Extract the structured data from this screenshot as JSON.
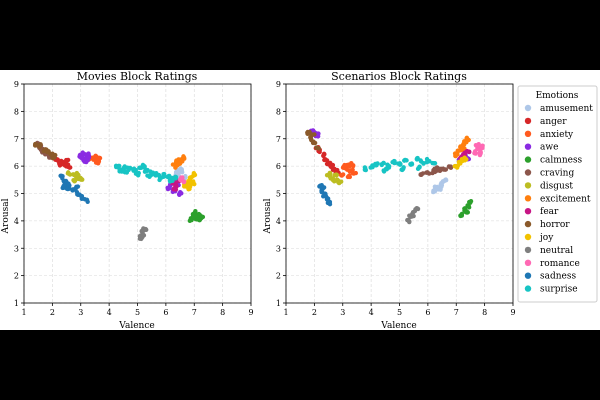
{
  "chart_data": [
    {
      "type": "scatter",
      "title": "Movies Block Ratings",
      "xlabel": "Valence",
      "ylabel": "Arousal",
      "xlim": [
        1,
        9
      ],
      "ylim": [
        1,
        9
      ],
      "xticks": [
        "1",
        "2",
        "3",
        "4",
        "5",
        "6",
        "7",
        "8",
        "9"
      ],
      "yticks": [
        "1",
        "2",
        "3",
        "4",
        "5",
        "6",
        "7",
        "8",
        "9"
      ],
      "grid": true,
      "series": [
        {
          "name": "amusement",
          "color": "#aec7e8",
          "points": [
            [
              6.4,
              5.7
            ],
            [
              6.5,
              5.6
            ],
            [
              6.6,
              5.8
            ],
            [
              6.3,
              5.5
            ],
            [
              6.5,
              5.9
            ],
            [
              6.7,
              5.6
            ],
            [
              6.6,
              5.5
            ],
            [
              6.4,
              5.8
            ]
          ]
        },
        {
          "name": "anger",
          "color": "#d62728",
          "points": [
            [
              2.1,
              6.25
            ],
            [
              2.2,
              6.2
            ],
            [
              2.3,
              6.15
            ],
            [
              2.4,
              6.1
            ],
            [
              2.5,
              6.05
            ],
            [
              2.6,
              6.0
            ],
            [
              2.5,
              6.2
            ],
            [
              2.3,
              6.05
            ]
          ]
        },
        {
          "name": "anxiety",
          "color": "#ff5a1f",
          "points": [
            [
              3.35,
              6.3
            ],
            [
              3.45,
              6.25
            ],
            [
              3.55,
              6.2
            ],
            [
              3.65,
              6.25
            ],
            [
              3.5,
              6.35
            ],
            [
              3.6,
              6.15
            ]
          ]
        },
        {
          "name": "awe",
          "color": "#8a2be2",
          "points": [
            [
              3.0,
              6.35
            ],
            [
              3.1,
              6.45
            ],
            [
              3.2,
              6.3
            ],
            [
              3.3,
              6.4
            ],
            [
              3.15,
              6.2
            ],
            [
              3.25,
              6.25
            ],
            [
              6.1,
              5.2
            ],
            [
              6.3,
              5.1
            ],
            [
              6.5,
              5.0
            ],
            [
              6.4,
              5.3
            ],
            [
              6.2,
              5.35
            ]
          ]
        },
        {
          "name": "calmness",
          "color": "#2ca02c",
          "points": [
            [
              6.9,
              4.05
            ],
            [
              7.0,
              4.2
            ],
            [
              7.1,
              4.1
            ],
            [
              7.2,
              4.25
            ],
            [
              7.25,
              4.15
            ],
            [
              7.05,
              4.3
            ],
            [
              7.15,
              4.0
            ],
            [
              6.95,
              4.2
            ]
          ]
        },
        {
          "name": "craving",
          "color": "#8c564b",
          "points": [
            [
              1.5,
              6.8
            ],
            [
              1.6,
              6.7
            ],
            [
              1.7,
              6.55
            ],
            [
              1.8,
              6.45
            ],
            [
              1.9,
              6.35
            ],
            [
              1.65,
              6.6
            ]
          ]
        },
        {
          "name": "disgust",
          "color": "#bcbd22",
          "points": [
            [
              2.6,
              5.75
            ],
            [
              2.75,
              5.7
            ],
            [
              2.85,
              5.6
            ],
            [
              2.95,
              5.55
            ],
            [
              3.05,
              5.5
            ],
            [
              2.8,
              5.5
            ],
            [
              2.9,
              5.7
            ]
          ]
        },
        {
          "name": "excitement",
          "color": "#ff7f0e",
          "points": [
            [
              6.3,
              6.0
            ],
            [
              6.4,
              6.15
            ],
            [
              6.5,
              6.25
            ],
            [
              6.6,
              6.3
            ],
            [
              6.45,
              6.05
            ],
            [
              6.55,
              6.2
            ]
          ]
        },
        {
          "name": "fear",
          "color": "#c71585",
          "points": [
            [
              6.25,
              5.4
            ],
            [
              6.35,
              5.3
            ],
            [
              6.45,
              5.45
            ],
            [
              6.3,
              5.2
            ],
            [
              6.4,
              5.5
            ]
          ]
        },
        {
          "name": "horror",
          "color": "#8b5a2b",
          "points": [
            [
              1.45,
              6.8
            ],
            [
              1.55,
              6.75
            ],
            [
              1.75,
              6.6
            ],
            [
              1.85,
              6.5
            ],
            [
              1.95,
              6.4
            ],
            [
              2.05,
              6.35
            ]
          ]
        },
        {
          "name": "joy",
          "color": "#f2c200",
          "points": [
            [
              6.7,
              5.3
            ],
            [
              6.8,
              5.45
            ],
            [
              6.9,
              5.55
            ],
            [
              7.0,
              5.7
            ],
            [
              6.85,
              5.2
            ],
            [
              6.95,
              5.4
            ]
          ]
        },
        {
          "name": "neutral",
          "color": "#7f7f7f",
          "points": [
            [
              5.1,
              3.4
            ],
            [
              5.15,
              3.5
            ],
            [
              5.2,
              3.6
            ],
            [
              5.25,
              3.7
            ],
            [
              5.2,
              3.45
            ]
          ]
        },
        {
          "name": "romance",
          "color": "#ff69b4",
          "points": [
            [
              6.5,
              5.55
            ],
            [
              6.6,
              5.45
            ],
            [
              6.55,
              5.6
            ]
          ]
        },
        {
          "name": "sadness",
          "color": "#1f77b4",
          "points": [
            [
              2.3,
              5.6
            ],
            [
              2.45,
              5.4
            ],
            [
              2.6,
              5.3
            ],
            [
              2.75,
              5.15
            ],
            [
              2.9,
              5.0
            ],
            [
              3.05,
              4.85
            ],
            [
              3.2,
              4.75
            ],
            [
              2.55,
              5.2
            ],
            [
              2.85,
              5.2
            ],
            [
              2.4,
              5.25
            ]
          ]
        },
        {
          "name": "surprise",
          "color": "#17c4c4",
          "points": [
            [
              4.3,
              6.0
            ],
            [
              4.5,
              5.95
            ],
            [
              4.7,
              5.9
            ],
            [
              4.9,
              5.85
            ],
            [
              5.1,
              5.9
            ],
            [
              5.3,
              5.8
            ],
            [
              5.5,
              5.75
            ],
            [
              5.7,
              5.7
            ],
            [
              5.9,
              5.65
            ],
            [
              6.1,
              5.6
            ],
            [
              6.3,
              5.55
            ],
            [
              4.6,
              5.75
            ],
            [
              5.0,
              5.7
            ],
            [
              5.4,
              5.65
            ],
            [
              5.8,
              5.55
            ],
            [
              6.2,
              5.5
            ],
            [
              4.4,
              5.85
            ],
            [
              5.2,
              6.0
            ]
          ]
        }
      ]
    },
    {
      "type": "scatter",
      "title": "Scenarios Block Ratings",
      "xlabel": "Valence",
      "ylabel": "Arousal",
      "xlim": [
        1,
        9
      ],
      "ylim": [
        1,
        9
      ],
      "xticks": [
        "1",
        "2",
        "3",
        "4",
        "5",
        "6",
        "7",
        "8",
        "9"
      ],
      "yticks": [
        "1",
        "2",
        "3",
        "4",
        "5",
        "6",
        "7",
        "8",
        "9"
      ],
      "grid": true,
      "series": [
        {
          "name": "amusement",
          "color": "#aec7e8",
          "points": [
            [
              6.2,
              5.1
            ],
            [
              6.3,
              5.25
            ],
            [
              6.4,
              5.2
            ],
            [
              6.5,
              5.4
            ],
            [
              6.6,
              5.5
            ],
            [
              6.45,
              5.3
            ]
          ]
        },
        {
          "name": "anger",
          "color": "#d62728",
          "points": [
            [
              2.1,
              6.7
            ],
            [
              2.2,
              6.55
            ],
            [
              2.3,
              6.4
            ],
            [
              2.4,
              6.25
            ],
            [
              2.5,
              6.1
            ],
            [
              2.6,
              6.0
            ],
            [
              2.7,
              5.9
            ],
            [
              2.8,
              5.8
            ]
          ]
        },
        {
          "name": "anxiety",
          "color": "#ff5a1f",
          "points": [
            [
              3.0,
              5.7
            ],
            [
              3.1,
              5.9
            ],
            [
              3.2,
              6.0
            ],
            [
              3.3,
              5.85
            ],
            [
              3.4,
              5.75
            ],
            [
              3.2,
              5.6
            ],
            [
              3.35,
              6.05
            ],
            [
              3.05,
              6.0
            ]
          ]
        },
        {
          "name": "awe",
          "color": "#8a2be2",
          "points": [
            [
              1.9,
              7.3
            ],
            [
              2.0,
              7.2
            ],
            [
              2.1,
              7.15
            ],
            [
              7.1,
              6.2
            ],
            [
              7.2,
              6.35
            ],
            [
              7.3,
              6.4
            ],
            [
              7.4,
              6.3
            ]
          ]
        },
        {
          "name": "calmness",
          "color": "#2ca02c",
          "points": [
            [
              7.2,
              4.2
            ],
            [
              7.3,
              4.4
            ],
            [
              7.4,
              4.55
            ],
            [
              7.5,
              4.7
            ],
            [
              7.35,
              4.3
            ]
          ]
        },
        {
          "name": "craving",
          "color": "#8c564b",
          "points": [
            [
              5.8,
              5.7
            ],
            [
              6.0,
              5.75
            ],
            [
              6.2,
              5.8
            ],
            [
              6.4,
              5.85
            ],
            [
              6.6,
              5.9
            ],
            [
              6.8,
              6.0
            ],
            [
              6.3,
              5.95
            ]
          ]
        },
        {
          "name": "disgust",
          "color": "#bcbd22",
          "points": [
            [
              2.5,
              5.7
            ],
            [
              2.6,
              5.6
            ],
            [
              2.7,
              5.5
            ],
            [
              2.8,
              5.45
            ],
            [
              2.9,
              5.4
            ],
            [
              2.75,
              5.7
            ]
          ]
        },
        {
          "name": "excitement",
          "color": "#ff7f0e",
          "points": [
            [
              7.0,
              6.4
            ],
            [
              7.1,
              6.55
            ],
            [
              7.2,
              6.7
            ],
            [
              7.3,
              6.85
            ],
            [
              7.4,
              7.0
            ],
            [
              7.25,
              6.6
            ]
          ]
        },
        {
          "name": "fear",
          "color": "#c71585",
          "points": [
            [
              7.2,
              6.3
            ],
            [
              7.3,
              6.45
            ],
            [
              7.4,
              6.5
            ]
          ]
        },
        {
          "name": "horror",
          "color": "#8b5a2b",
          "points": [
            [
              1.8,
              7.2
            ],
            [
              1.9,
              7.0
            ],
            [
              2.0,
              6.85
            ],
            [
              2.1,
              6.7
            ],
            [
              1.95,
              7.1
            ]
          ]
        },
        {
          "name": "joy",
          "color": "#f2c200",
          "points": [
            [
              7.0,
              6.0
            ],
            [
              7.1,
              6.1
            ],
            [
              7.2,
              6.2
            ],
            [
              7.3,
              6.25
            ]
          ]
        },
        {
          "name": "neutral",
          "color": "#7f7f7f",
          "points": [
            [
              5.3,
              4.0
            ],
            [
              5.4,
              4.15
            ],
            [
              5.5,
              4.3
            ],
            [
              5.6,
              4.45
            ],
            [
              5.45,
              4.2
            ]
          ]
        },
        {
          "name": "romance",
          "color": "#ff69b4",
          "points": [
            [
              7.7,
              6.5
            ],
            [
              7.8,
              6.6
            ],
            [
              7.9,
              6.7
            ],
            [
              7.85,
              6.45
            ],
            [
              7.75,
              6.8
            ]
          ]
        },
        {
          "name": "sadness",
          "color": "#1f77b4",
          "points": [
            [
              2.2,
              5.3
            ],
            [
              2.3,
              5.1
            ],
            [
              2.35,
              4.95
            ],
            [
              2.45,
              4.8
            ],
            [
              2.5,
              4.65
            ],
            [
              2.3,
              5.2
            ]
          ]
        },
        {
          "name": "surprise",
          "color": "#17c4c4",
          "points": [
            [
              3.8,
              5.9
            ],
            [
              4.0,
              6.0
            ],
            [
              4.2,
              6.05
            ],
            [
              4.4,
              6.1
            ],
            [
              4.6,
              6.0
            ],
            [
              4.8,
              6.15
            ],
            [
              5.0,
              6.1
            ],
            [
              5.2,
              6.2
            ],
            [
              5.4,
              6.1
            ],
            [
              5.6,
              6.25
            ],
            [
              5.8,
              6.15
            ],
            [
              6.0,
              6.2
            ],
            [
              6.2,
              6.1
            ],
            [
              4.5,
              5.85
            ],
            [
              5.1,
              5.9
            ],
            [
              5.7,
              5.95
            ]
          ]
        }
      ]
    }
  ],
  "legend": {
    "title": "Emotions",
    "items": [
      {
        "label": "amusement",
        "color": "#aec7e8"
      },
      {
        "label": "anger",
        "color": "#d62728"
      },
      {
        "label": "anxiety",
        "color": "#ff5a1f"
      },
      {
        "label": "awe",
        "color": "#8a2be2"
      },
      {
        "label": "calmness",
        "color": "#2ca02c"
      },
      {
        "label": "craving",
        "color": "#8c564b"
      },
      {
        "label": "disgust",
        "color": "#bcbd22"
      },
      {
        "label": "excitement",
        "color": "#ff7f0e"
      },
      {
        "label": "fear",
        "color": "#c71585"
      },
      {
        "label": "horror",
        "color": "#8b5a2b"
      },
      {
        "label": "joy",
        "color": "#f2c200"
      },
      {
        "label": "neutral",
        "color": "#7f7f7f"
      },
      {
        "label": "romance",
        "color": "#ff69b4"
      },
      {
        "label": "sadness",
        "color": "#1f77b4"
      },
      {
        "label": "surprise",
        "color": "#17c4c4"
      }
    ]
  }
}
